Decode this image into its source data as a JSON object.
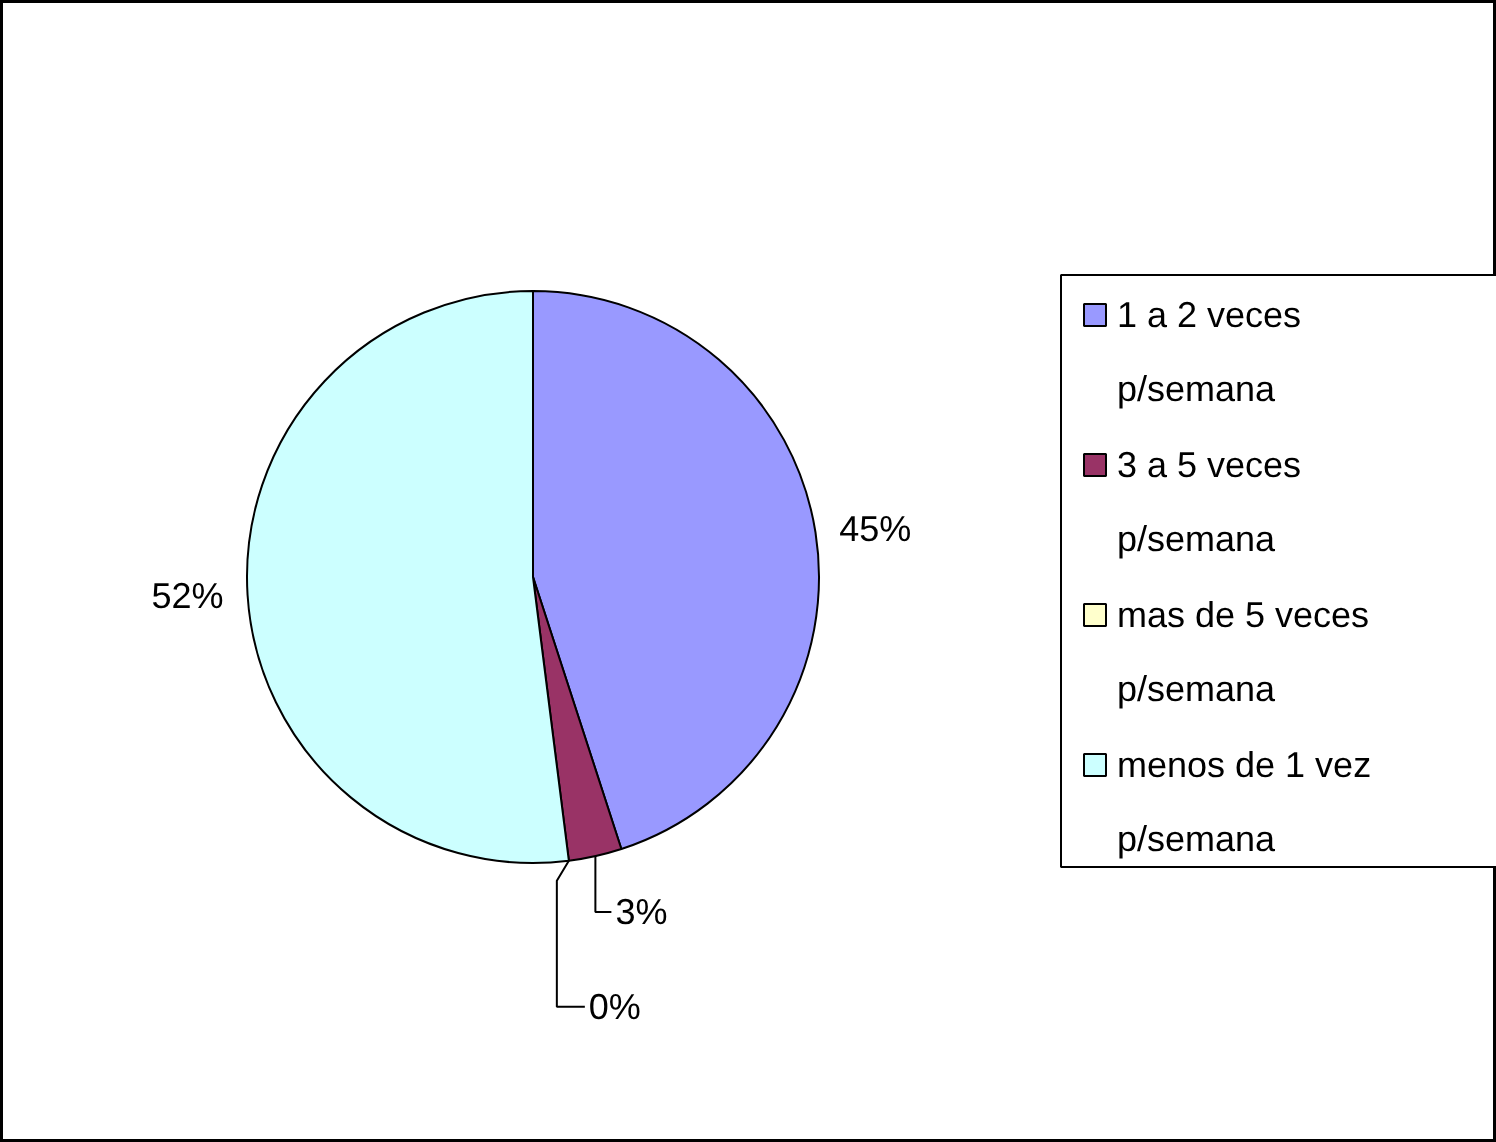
{
  "chart_data": {
    "type": "pie",
    "categories": [
      "1 a 2 veces p/semana",
      "3 a 5 veces p/semana",
      "mas de 5 veces p/semana",
      "menos de 1 vez p/semana"
    ],
    "values": [
      45,
      3,
      0,
      52
    ],
    "colors": [
      "#9999ff",
      "#993366",
      "#ffffcc",
      "#ccffff"
    ],
    "value_labels": [
      "45%",
      "3%",
      "0%",
      "52%"
    ],
    "legend": "right"
  }
}
